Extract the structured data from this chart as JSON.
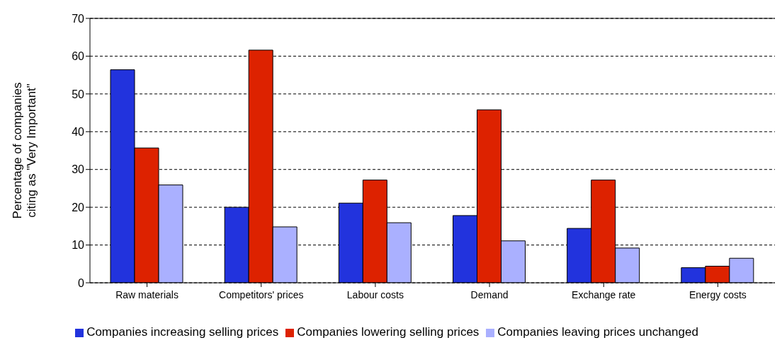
{
  "chart_data": {
    "type": "bar",
    "ylabel": "Percentage of companies citing as \"Very Important\"",
    "categories": [
      "Raw materials",
      "Competitors' prices",
      "Labour costs",
      "Demand",
      "Exchange rate",
      "Energy costs"
    ],
    "series": [
      {
        "name": "Companies increasing selling prices",
        "color": "#2233dd",
        "values": [
          56.4,
          20,
          21.1,
          17.8,
          14.4,
          4
        ]
      },
      {
        "name": "Companies lowering selling prices",
        "color": "#dd2200",
        "values": [
          35.7,
          61.6,
          27.2,
          45.8,
          27.2,
          4.4
        ]
      },
      {
        "name": "Companies leaving prices unchanged",
        "color": "#aab0ff",
        "values": [
          25.9,
          14.8,
          15.9,
          11.1,
          9.2,
          6.5
        ]
      }
    ],
    "ylim": [
      0,
      70
    ],
    "yticks": [
      0,
      10,
      20,
      30,
      40,
      50,
      60,
      70
    ],
    "grid": "y",
    "legend": "bottom"
  }
}
